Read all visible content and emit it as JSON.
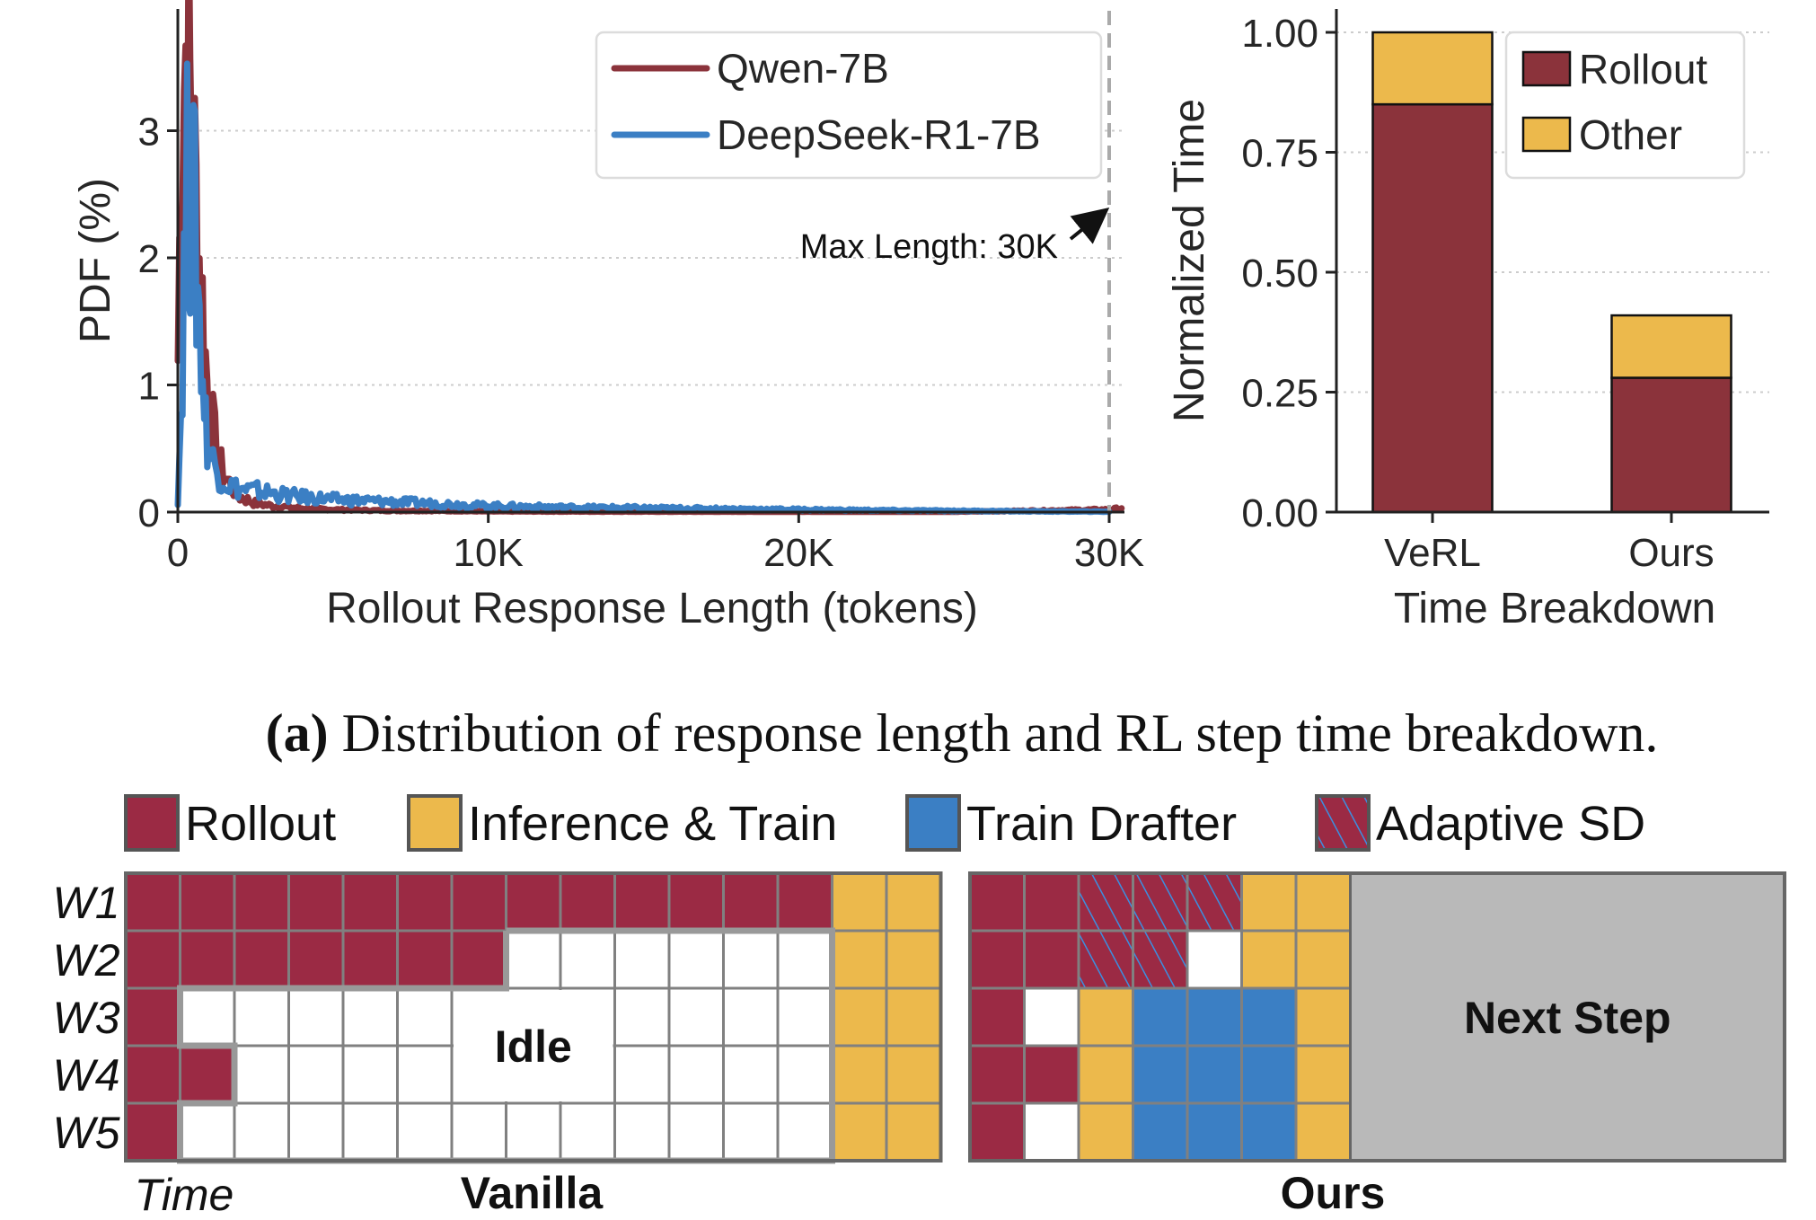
{
  "chart_data": [
    {
      "type": "line",
      "title": "",
      "xlabel": "Rollout Response Length (tokens)",
      "ylabel": "PDF (%)",
      "xlim": [
        0,
        30500
      ],
      "ylim": [
        0,
        3.9
      ],
      "xticks": [
        0,
        10000,
        20000,
        30000
      ],
      "xtick_labels": [
        "0",
        "10K",
        "20K",
        "30K"
      ],
      "yticks": [
        0,
        1,
        2,
        3
      ],
      "ytick_labels": [
        "0",
        "1",
        "2",
        "3"
      ],
      "grid": "horizontal-dotted",
      "legend_position": "top-right",
      "annotation": {
        "text": "Max Length: 30K",
        "x": 30000,
        "style": "dashed-vertical-line-with-arrow"
      },
      "series": [
        {
          "name": "Qwen-7B",
          "color": "#8b333b",
          "x": [
            0,
            100,
            200,
            300,
            400,
            500,
            600,
            700,
            800,
            900,
            1000,
            1200,
            1400,
            1600,
            1800,
            2000,
            2500,
            3000,
            3500,
            4000,
            5000,
            6000,
            7000,
            8000,
            10000,
            15000,
            20000,
            25000,
            30000,
            30400
          ],
          "values": [
            1.2,
            2.9,
            3.5,
            3.8,
            3.3,
            2.8,
            2.4,
            2.0,
            1.6,
            1.2,
            0.9,
            0.55,
            0.35,
            0.25,
            0.18,
            0.12,
            0.07,
            0.05,
            0.04,
            0.03,
            0.02,
            0.015,
            0.01,
            0.01,
            0.005,
            0.003,
            0.002,
            0.002,
            0.02,
            0.03
          ]
        },
        {
          "name": "DeepSeek-R1-7B",
          "color": "#3b7fc4",
          "x": [
            0,
            100,
            200,
            300,
            400,
            500,
            600,
            700,
            800,
            900,
            1000,
            1200,
            1400,
            1600,
            1800,
            2000,
            2500,
            3000,
            3500,
            4000,
            5000,
            6000,
            7000,
            8000,
            9000,
            10000,
            12000,
            14000,
            16000,
            18000,
            20000,
            22000,
            25000,
            28000,
            30000
          ],
          "values": [
            0.1,
            0.8,
            1.8,
            2.5,
            2.7,
            2.4,
            2.0,
            1.5,
            1.1,
            0.7,
            0.5,
            0.35,
            0.28,
            0.22,
            0.2,
            0.18,
            0.17,
            0.15,
            0.13,
            0.12,
            0.1,
            0.09,
            0.08,
            0.07,
            0.06,
            0.05,
            0.04,
            0.035,
            0.03,
            0.025,
            0.02,
            0.015,
            0.01,
            0.005,
            0.003
          ]
        }
      ]
    },
    {
      "type": "bar",
      "stacked": true,
      "title": "",
      "xlabel": "Time Breakdown",
      "ylabel": "Normalized Time",
      "categories": [
        "VeRL",
        "Ours"
      ],
      "ylim": [
        0,
        1.05
      ],
      "yticks": [
        0,
        0.25,
        0.5,
        0.75,
        1.0
      ],
      "ytick_labels": [
        "0.00",
        "0.25",
        "0.50",
        "0.75",
        "1.00"
      ],
      "grid": "horizontal-dotted",
      "legend_position": "top-right",
      "series": [
        {
          "name": "Rollout",
          "color": "#8b333b",
          "values": [
            0.85,
            0.28
          ]
        },
        {
          "name": "Other",
          "color": "#ecb94c",
          "values": [
            0.15,
            0.13
          ]
        }
      ]
    }
  ],
  "caption": {
    "label": "(a)",
    "text": " Distribution of response length and RL step time breakdown."
  },
  "gantt": {
    "legend": [
      {
        "key": "R",
        "label": "Rollout",
        "color": "#9b2a44"
      },
      {
        "key": "Y",
        "label": "Inference & Train",
        "color": "#ecb94c"
      },
      {
        "key": "B",
        "label": "Train Drafter",
        "color": "#3b7fc4"
      },
      {
        "key": "H",
        "label": "Adaptive SD",
        "color": "#9b2a44",
        "hatch": "#3b8fe0"
      }
    ],
    "workers": [
      "W1",
      "W2",
      "W3",
      "W4",
      "W5"
    ],
    "time_label": "Time",
    "panels": [
      {
        "name": "Vanilla",
        "idle_label": "Idle",
        "rows": [
          "RRRRRRRRRRRRRYY",
          "RRRRRRRWWWWWWYY",
          "RWWWWWWWWWWWWYY",
          "RRWWWWWWWWWWWYY",
          "RWWWWWWWWWWWWYY"
        ]
      },
      {
        "name": "Ours",
        "next_label": "Next Step",
        "rows": [
          "RRHHHYY",
          "RRHHWYY",
          "RWYBBBY",
          "RRYBBBY",
          "RWYBBBY"
        ]
      }
    ]
  }
}
